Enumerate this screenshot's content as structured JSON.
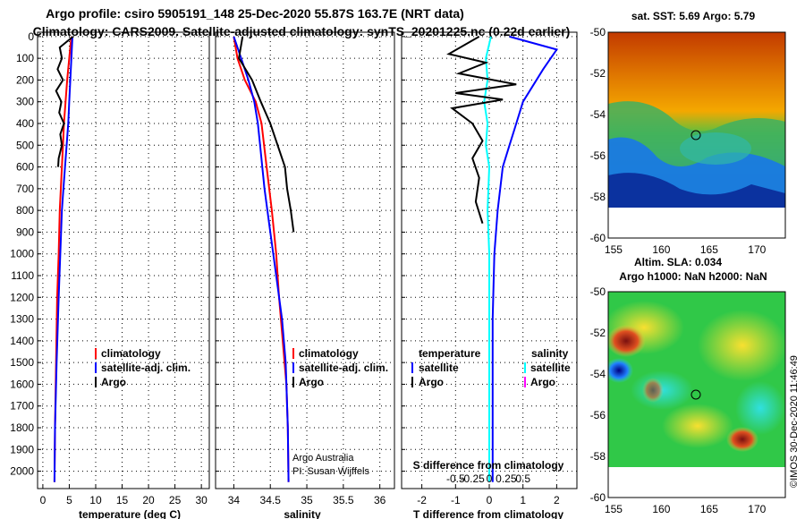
{
  "title_line1": "Argo profile: csiro 5905191_148 25-Dec-2020 55.87S 163.7E (NRT data)",
  "title_line2": "Climatology: CARS2009. Satellite-adjusted climatology: synTS_20201225.nc (0.22d earlier)",
  "colors": {
    "climatology": "#ff0000",
    "satellite": "#0000ff",
    "argo": "#000000",
    "t_diff": "#00ffff",
    "s_diff": "#0000ff",
    "salinity_argo_legend": "#ff00ff"
  },
  "depth_ticks": [
    "0",
    "100",
    "200",
    "300",
    "400",
    "500",
    "600",
    "700",
    "800",
    "900",
    "1000",
    "1100",
    "1200",
    "1300",
    "1400",
    "1500",
    "1600",
    "1700",
    "1800",
    "1900",
    "2000"
  ],
  "chart_data": [
    {
      "type": "line",
      "id": "temperature",
      "xlabel": "temperature (deg C)",
      "ylabel": "",
      "xlim": [
        -1,
        31.5
      ],
      "ylim": [
        2080,
        -20
      ],
      "xticks": [
        0,
        5,
        10,
        15,
        20,
        25,
        30
      ],
      "xtick_labels": [
        "0",
        "5",
        "10",
        "15",
        "20",
        "25",
        "30"
      ],
      "legend": [
        "climatology",
        "satellite-adj. clim.",
        "Argo"
      ],
      "series": [
        {
          "name": "climatology",
          "color": "#ff0000",
          "x": [
            5.4,
            5.0,
            4.6,
            4.3,
            4.0,
            3.8,
            3.6,
            3.4,
            3.2,
            3.0,
            2.7,
            2.5,
            2.3,
            2.2
          ],
          "y": [
            0,
            100,
            200,
            300,
            400,
            500,
            600,
            700,
            800,
            1000,
            1200,
            1500,
            1800,
            2050
          ]
        },
        {
          "name": "satellite-adj. clim.",
          "color": "#0000ff",
          "x": [
            5.6,
            5.4,
            5.2,
            5.0,
            4.8,
            4.5,
            4.2,
            3.9,
            3.6,
            3.3,
            3.0,
            2.6,
            2.3,
            2.2
          ],
          "y": [
            0,
            100,
            200,
            300,
            400,
            500,
            600,
            700,
            800,
            1000,
            1200,
            1500,
            1800,
            2050
          ]
        },
        {
          "name": "Argo",
          "color": "#000000",
          "x": [
            5.7,
            3.2,
            3.6,
            2.8,
            3.8,
            2.5,
            3.5,
            3.1,
            4.0,
            3.3,
            3.6,
            3.0,
            2.9
          ],
          "y": [
            0,
            50,
            100,
            150,
            200,
            250,
            300,
            350,
            400,
            450,
            500,
            560,
            600
          ]
        }
      ]
    },
    {
      "type": "line",
      "id": "salinity",
      "xlabel": "salinity",
      "ylabel": "",
      "xlim": [
        33.75,
        36.2
      ],
      "ylim": [
        2080,
        -20
      ],
      "xticks": [
        34,
        34.5,
        35,
        35.5,
        36
      ],
      "xtick_labels": [
        "34",
        "34.5",
        "35",
        "35.5",
        "36"
      ],
      "legend": [
        "climatology",
        "satellite-adj. clim.",
        "Argo"
      ],
      "annotation": [
        "Argo Australia",
        "PI: Susan Wijffels"
      ],
      "series": [
        {
          "name": "climatology",
          "color": "#ff0000",
          "x": [
            34.0,
            34.05,
            34.15,
            34.3,
            34.38,
            34.45,
            34.52,
            34.58,
            34.62,
            34.67,
            34.72,
            34.74,
            34.75
          ],
          "y": [
            0,
            100,
            200,
            300,
            400,
            600,
            800,
            1000,
            1200,
            1400,
            1600,
            1800,
            2050
          ]
        },
        {
          "name": "satellite-adj. clim.",
          "color": "#0000ff",
          "x": [
            34.0,
            34.1,
            34.2,
            34.28,
            34.33,
            34.36,
            34.42,
            34.5,
            34.58,
            34.66,
            34.71,
            34.74,
            34.75
          ],
          "y": [
            0,
            100,
            200,
            300,
            400,
            500,
            700,
            900,
            1100,
            1300,
            1500,
            1800,
            2050
          ]
        },
        {
          "name": "Argo",
          "color": "#000000",
          "x": [
            34.12,
            34.07,
            34.25,
            34.37,
            34.5,
            34.6,
            34.7,
            34.73,
            34.78,
            34.82
          ],
          "y": [
            0,
            100,
            200,
            300,
            400,
            500,
            600,
            700,
            800,
            900
          ]
        }
      ]
    },
    {
      "type": "line",
      "id": "difference",
      "xlabel": "T difference from climatology",
      "ylabel": "",
      "xlim": [
        -2.6,
        2.6
      ],
      "ylim": [
        2080,
        -20
      ],
      "xticks": [
        -2,
        -1,
        0,
        1,
        2
      ],
      "xtick_labels": [
        "-2",
        "-1",
        "0",
        "1",
        "2"
      ],
      "s_xtick_labels": [
        "-0.5",
        "-0.25",
        "0",
        "0.25",
        "0.5"
      ],
      "s_axis_label": "S difference from climatology",
      "legend_left_header": "temperature",
      "legend_right_header": "salinity",
      "legend_left": [
        "satellite",
        "Argo"
      ],
      "legend_right": [
        "satellite",
        "Argo"
      ],
      "series": [
        {
          "name": "T satellite",
          "color": "#0000ff",
          "x": [
            0.6,
            2.0,
            1.6,
            1.0,
            0.8,
            0.6,
            0.4,
            0.25,
            0.15,
            0.1,
            0.1,
            0.1
          ],
          "y": [
            0,
            60,
            150,
            300,
            400,
            500,
            600,
            800,
            1000,
            1300,
            1700,
            2050
          ]
        },
        {
          "name": "S satellite",
          "color": "#00ffff",
          "x": [
            0.05,
            -0.1,
            -0.05,
            -0.15,
            -0.05,
            -0.1,
            0.0,
            -0.05,
            0.0,
            0.0,
            0.0,
            0.0
          ],
          "y": [
            0,
            100,
            200,
            300,
            400,
            500,
            600,
            800,
            1000,
            1300,
            1700,
            2050
          ]
        },
        {
          "name": "T Argo",
          "color": "#000000",
          "x": [
            -0.3,
            -1.2,
            -0.1,
            -0.9,
            0.8,
            -1.0,
            0.4,
            -1.1,
            -0.5,
            -0.2,
            -0.5,
            -0.3,
            -0.4,
            -0.2
          ],
          "y": [
            0,
            80,
            120,
            170,
            220,
            260,
            290,
            330,
            400,
            480,
            560,
            650,
            760,
            860
          ]
        }
      ]
    }
  ],
  "maps": [
    {
      "title": "sat. SST: 5.69 Argo: 5.79",
      "lon_ticks": [
        "155",
        "160",
        "165",
        "170"
      ],
      "lat_ticks": [
        "-50",
        "-52",
        "-54",
        "-56",
        "-58",
        "-60"
      ]
    },
    {
      "title_line1": "Altim. SLA: 0.034",
      "title_line2": "Argo h1000: NaN h2000: NaN",
      "lon_ticks": [
        "155",
        "160",
        "165",
        "170"
      ],
      "lat_ticks": [
        "-50",
        "-52",
        "-54",
        "-56",
        "-58",
        "-60"
      ]
    }
  ],
  "credit": "©IMOS 30-Dec-2020 11:46:49"
}
